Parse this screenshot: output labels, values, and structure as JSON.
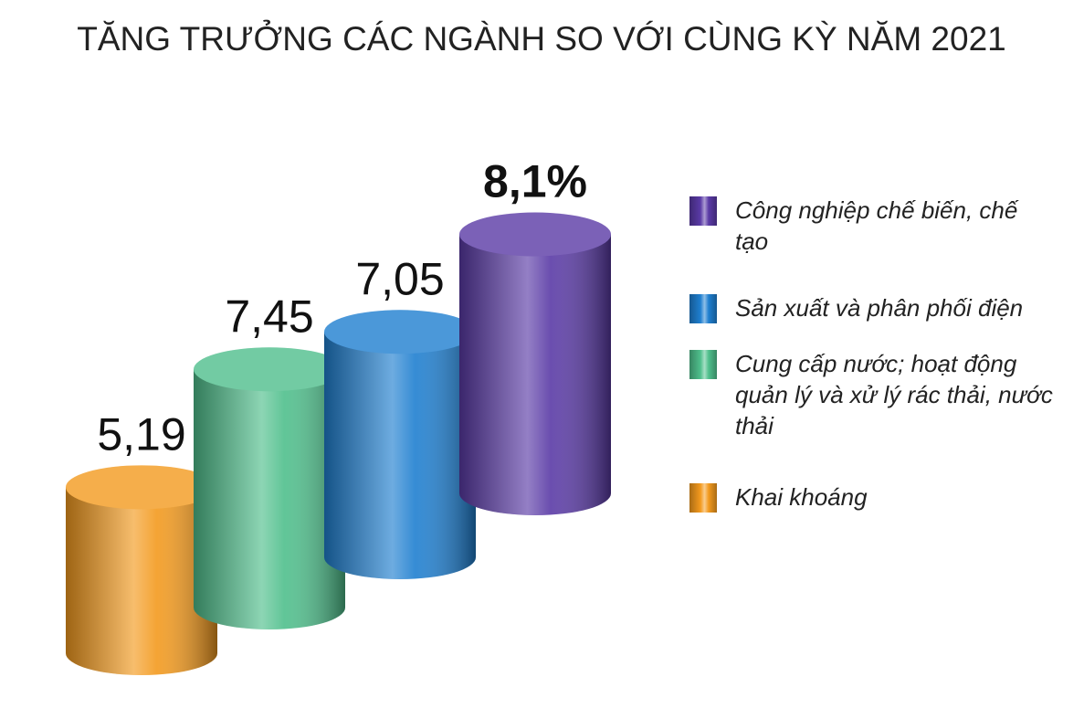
{
  "chart_data": {
    "type": "cylinder-bar",
    "title": "TĂNG TRƯỞNG CÁC NGÀNH SO VỚI CÙNG KỲ NĂM 2021",
    "series": [
      {
        "name": "Khai khoáng",
        "color": "#f39a1e",
        "values": [
          5.19
        ],
        "value_labels": [
          "5,19"
        ]
      },
      {
        "name": "Cung cấp nước; hoạt động quản lý và xử lý rác thải, nước thải",
        "color": "#4fbf8c",
        "values": [
          7.45
        ],
        "value_labels": [
          "7,45"
        ]
      },
      {
        "name": "Sản xuất và phân phối điện",
        "color": "#1f7fd0",
        "values": [
          7.05
        ],
        "value_labels": [
          "7,05"
        ]
      },
      {
        "name": "Công nghiệp chế biến, chế tạo",
        "color": "#5a3aa6",
        "values": [
          8.1
        ],
        "value_labels": [
          "8,1%"
        ]
      }
    ]
  }
}
